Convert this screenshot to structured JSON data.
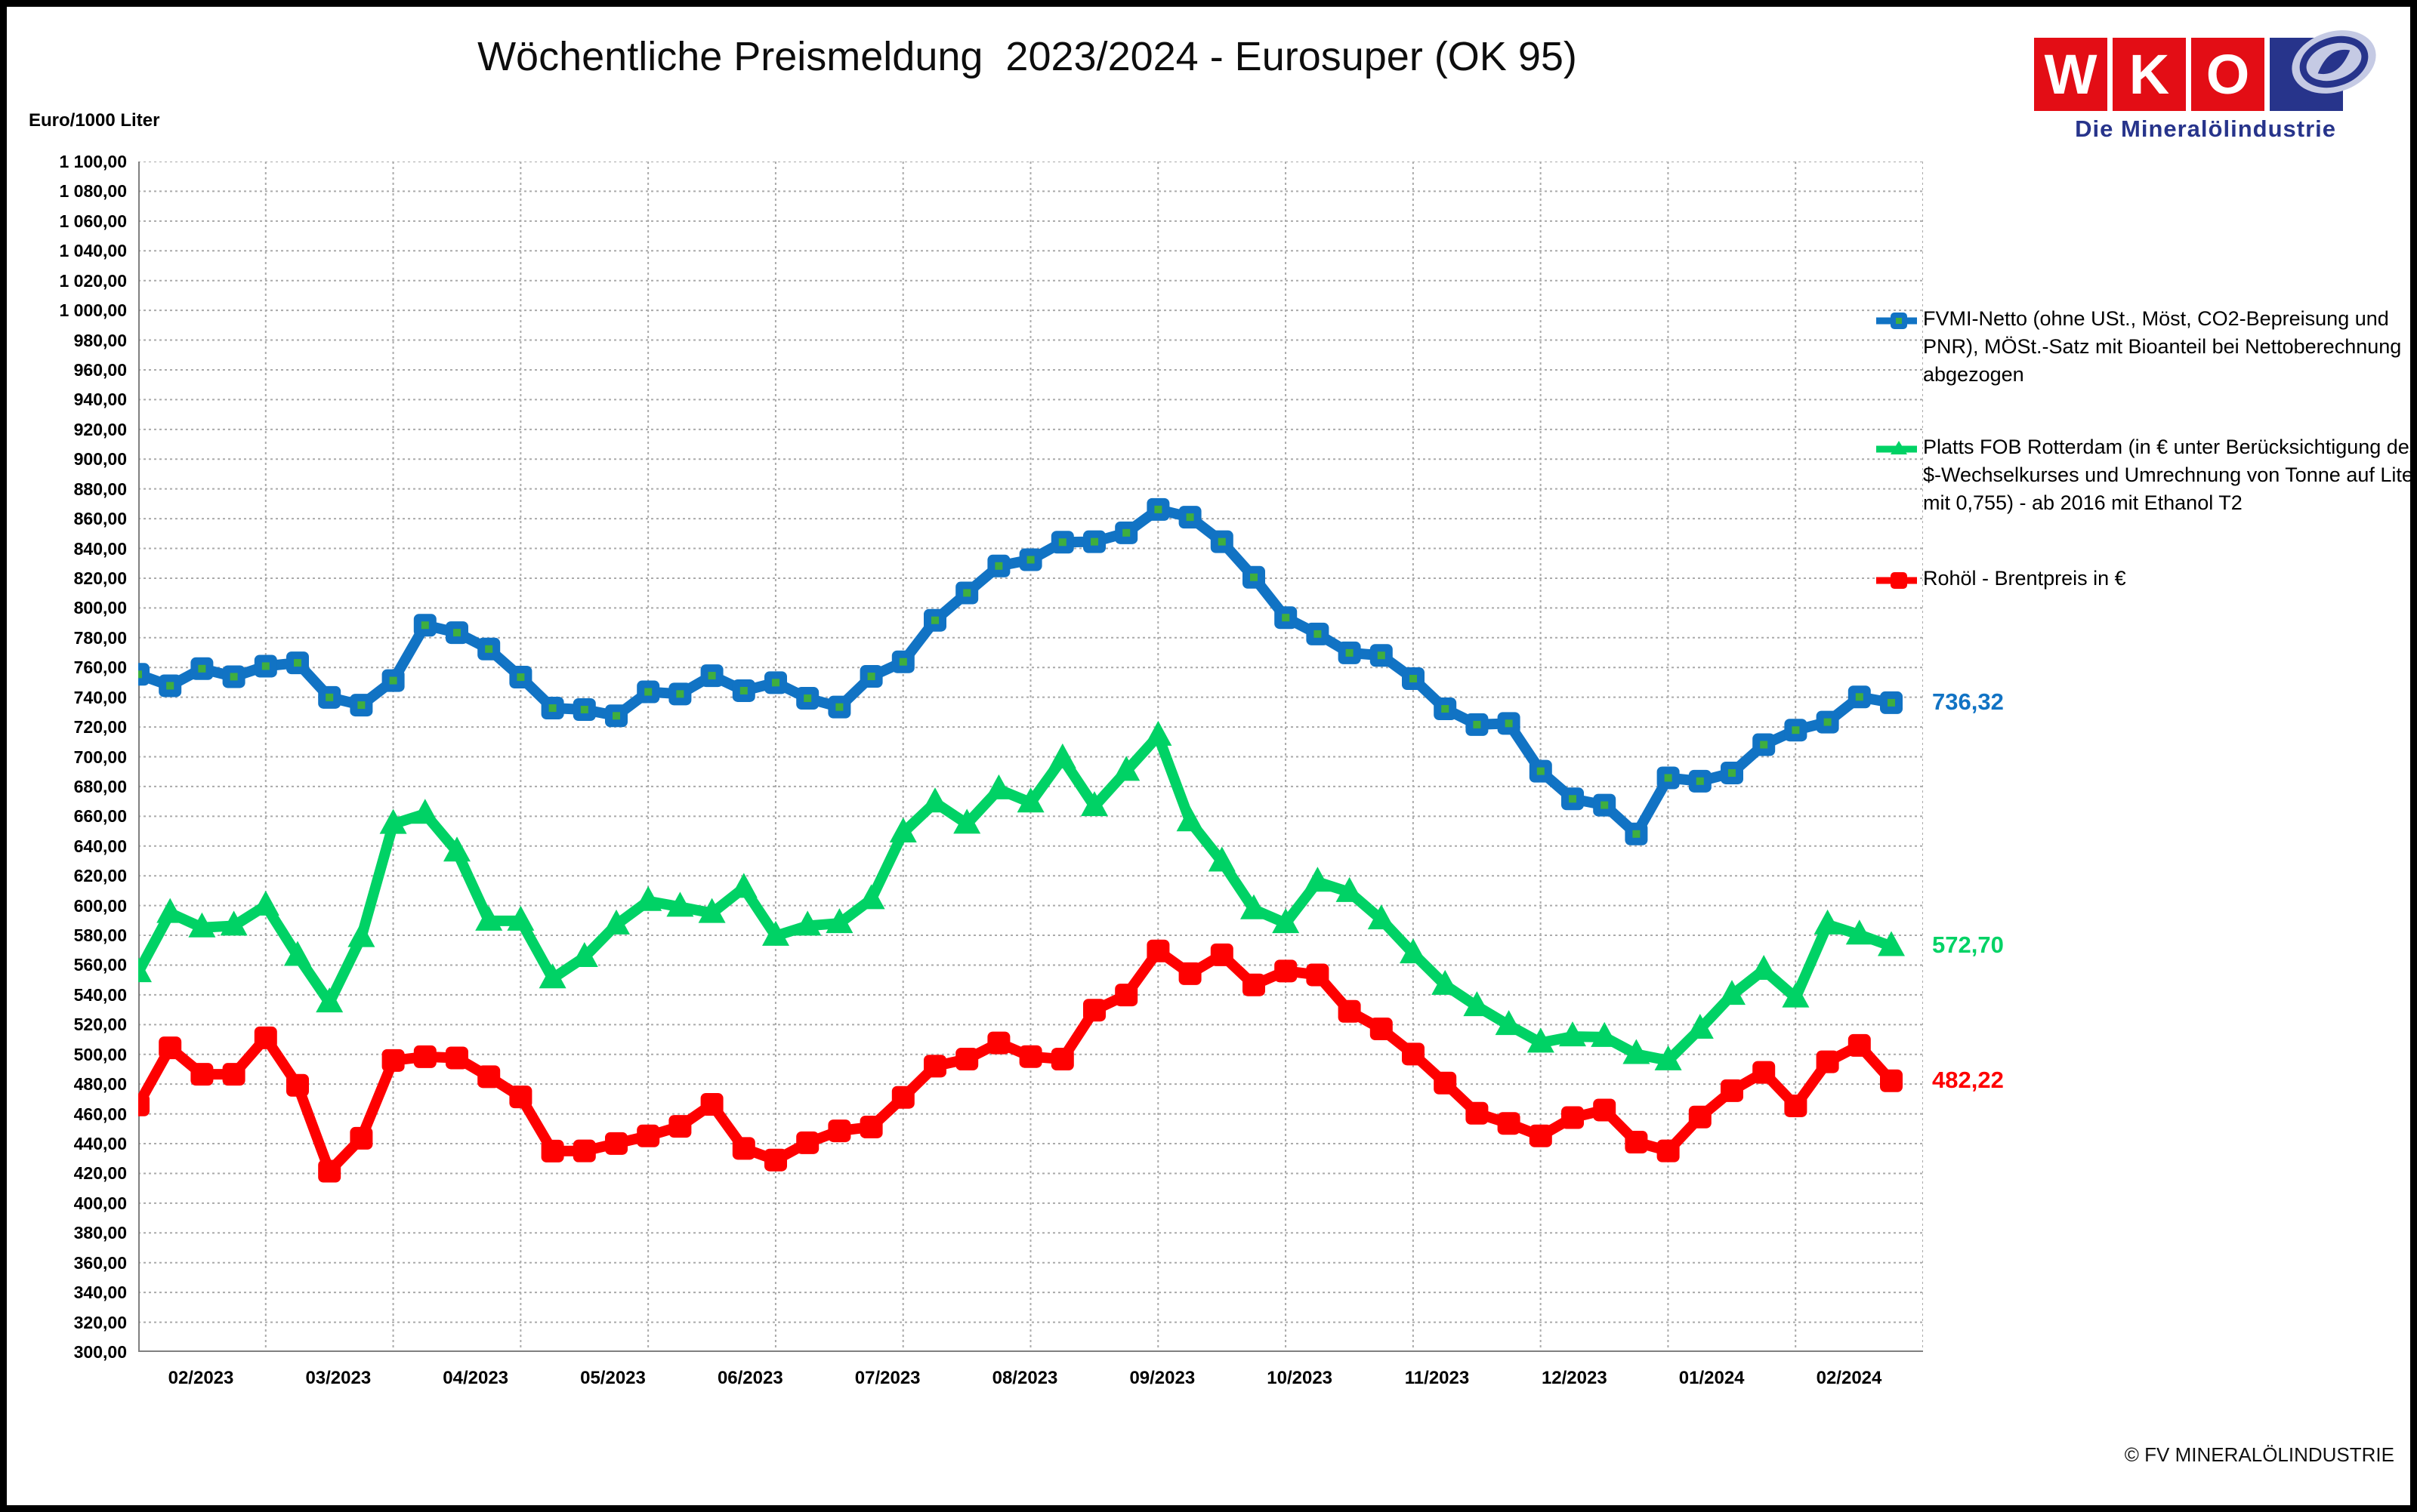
{
  "header": {
    "title": "Wöchentliche Preismeldung  2023/2024 - Eurosuper (OK 95)"
  },
  "footer": {
    "copyright": "© FV MINERALÖLINDUSTRIE"
  },
  "logo": {
    "letters": [
      "W",
      "K",
      "O"
    ],
    "subtitle": "Die Mineralölindustrie",
    "red": "#e30d15",
    "blue": "#27348b",
    "light_ellipse": "#c5cae4"
  },
  "chart_data": {
    "type": "line",
    "title": "Wöchentliche Preismeldung  2023/2024 - Eurosuper (OK 95)",
    "y_axis": {
      "label": "Euro/1000 Liter",
      "min": 300,
      "max": 1100,
      "step": 20,
      "tick_format": "german-decimal-comma"
    },
    "x_axis": {
      "tick_labels": [
        "02/2023",
        "03/2023",
        "04/2023",
        "05/2023",
        "06/2023",
        "07/2023",
        "08/2023",
        "09/2023",
        "10/2023",
        "11/2023",
        "12/2023",
        "01/2024",
        "02/2024"
      ],
      "points": 56,
      "gridline_every_points": 4
    },
    "grid": true,
    "legend_position": "right",
    "series": [
      {
        "id": "fvmi",
        "name": "FVMI-Netto (ohne USt., Möst, CO2-Bepreisung und PNR), MÖSt.-Satz mit Bioanteil bei Nettoberechnung abgezogen",
        "color": "#1173c4",
        "marker": "square",
        "marker_inner": "#3fae3f",
        "end_label": "736,32",
        "values": [
          755.4,
          747.7,
          759.2,
          753.8,
          760.9,
          763.1,
          739.9,
          734.7,
          751.2,
          788.4,
          783.4,
          772.4,
          753.5,
          732.7,
          731.7,
          727.5,
          743.6,
          742.2,
          754.5,
          744.4,
          749.8,
          739.3,
          733.4,
          754.0,
          763.8,
          791.7,
          810.1,
          828.2,
          832.4,
          844.2,
          844.5,
          850.5,
          866.2,
          861.0,
          844.5,
          820.6,
          793.5,
          782.5,
          769.8,
          768.1,
          752.5,
          732.2,
          721.6,
          722.4,
          690.3,
          671.7,
          667.5,
          648.1,
          685.8,
          683.6,
          689.1,
          708.1,
          717.9,
          723.3,
          740.2,
          736.32
        ]
      },
      {
        "id": "platts",
        "name": "Platts FOB Rotterdam (in € unter Berücksichtigung des $-Wechselkurses und Umrechnung von Tonne auf Liter mit 0,755) - ab 2016 mit Ethanol T2",
        "color": "#00d265",
        "marker": "triangle",
        "marker_inner": null,
        "end_label": "572,70",
        "values": [
          555.1,
          594.9,
          585.2,
          586.4,
          599.9,
          566.1,
          534.8,
          578.7,
          654.8,
          661.6,
          636.2,
          589.7,
          589.7,
          551.0,
          565.3,
          587.2,
          603.0,
          599.1,
          594.9,
          611.8,
          579.6,
          586.4,
          588.1,
          604.2,
          649.0,
          669.2,
          654.9,
          678.0,
          669.2,
          698.8,
          666.7,
          690.4,
          714.0,
          656.5,
          629.5,
          597.4,
          588.1,
          615.9,
          609.0,
          590.6,
          567.8,
          546.6,
          532.3,
          519.6,
          507.8,
          512.0,
          511.6,
          500.1,
          495.9,
          517.1,
          539.9,
          556.7,
          538.1,
          587.2,
          580.4,
          572.7
        ]
      },
      {
        "id": "brent",
        "name": "Rohöl - Brentpreis in €",
        "color": "#fe0000",
        "marker": "square",
        "marker_inner": null,
        "end_label": "482,22",
        "values": [
          466.0,
          504.4,
          486.6,
          486.6,
          511.1,
          479.2,
          421.5,
          443.6,
          495.9,
          498.4,
          497.6,
          485.0,
          471.4,
          435.0,
          435.1,
          440.1,
          445.2,
          451.6,
          466.4,
          436.8,
          429.0,
          440.6,
          448.6,
          451.2,
          471.1,
          492.1,
          496.8,
          507.7,
          498.5,
          496.8,
          529.7,
          539.9,
          569.5,
          554.2,
          566.9,
          546.7,
          556.0,
          553.4,
          528.9,
          517.1,
          500.2,
          480.7,
          460.4,
          453.6,
          445.2,
          457.5,
          462.6,
          441.0,
          435.1,
          457.9,
          475.6,
          487.9,
          465.4,
          495.0,
          506.0,
          482.22
        ]
      }
    ]
  }
}
